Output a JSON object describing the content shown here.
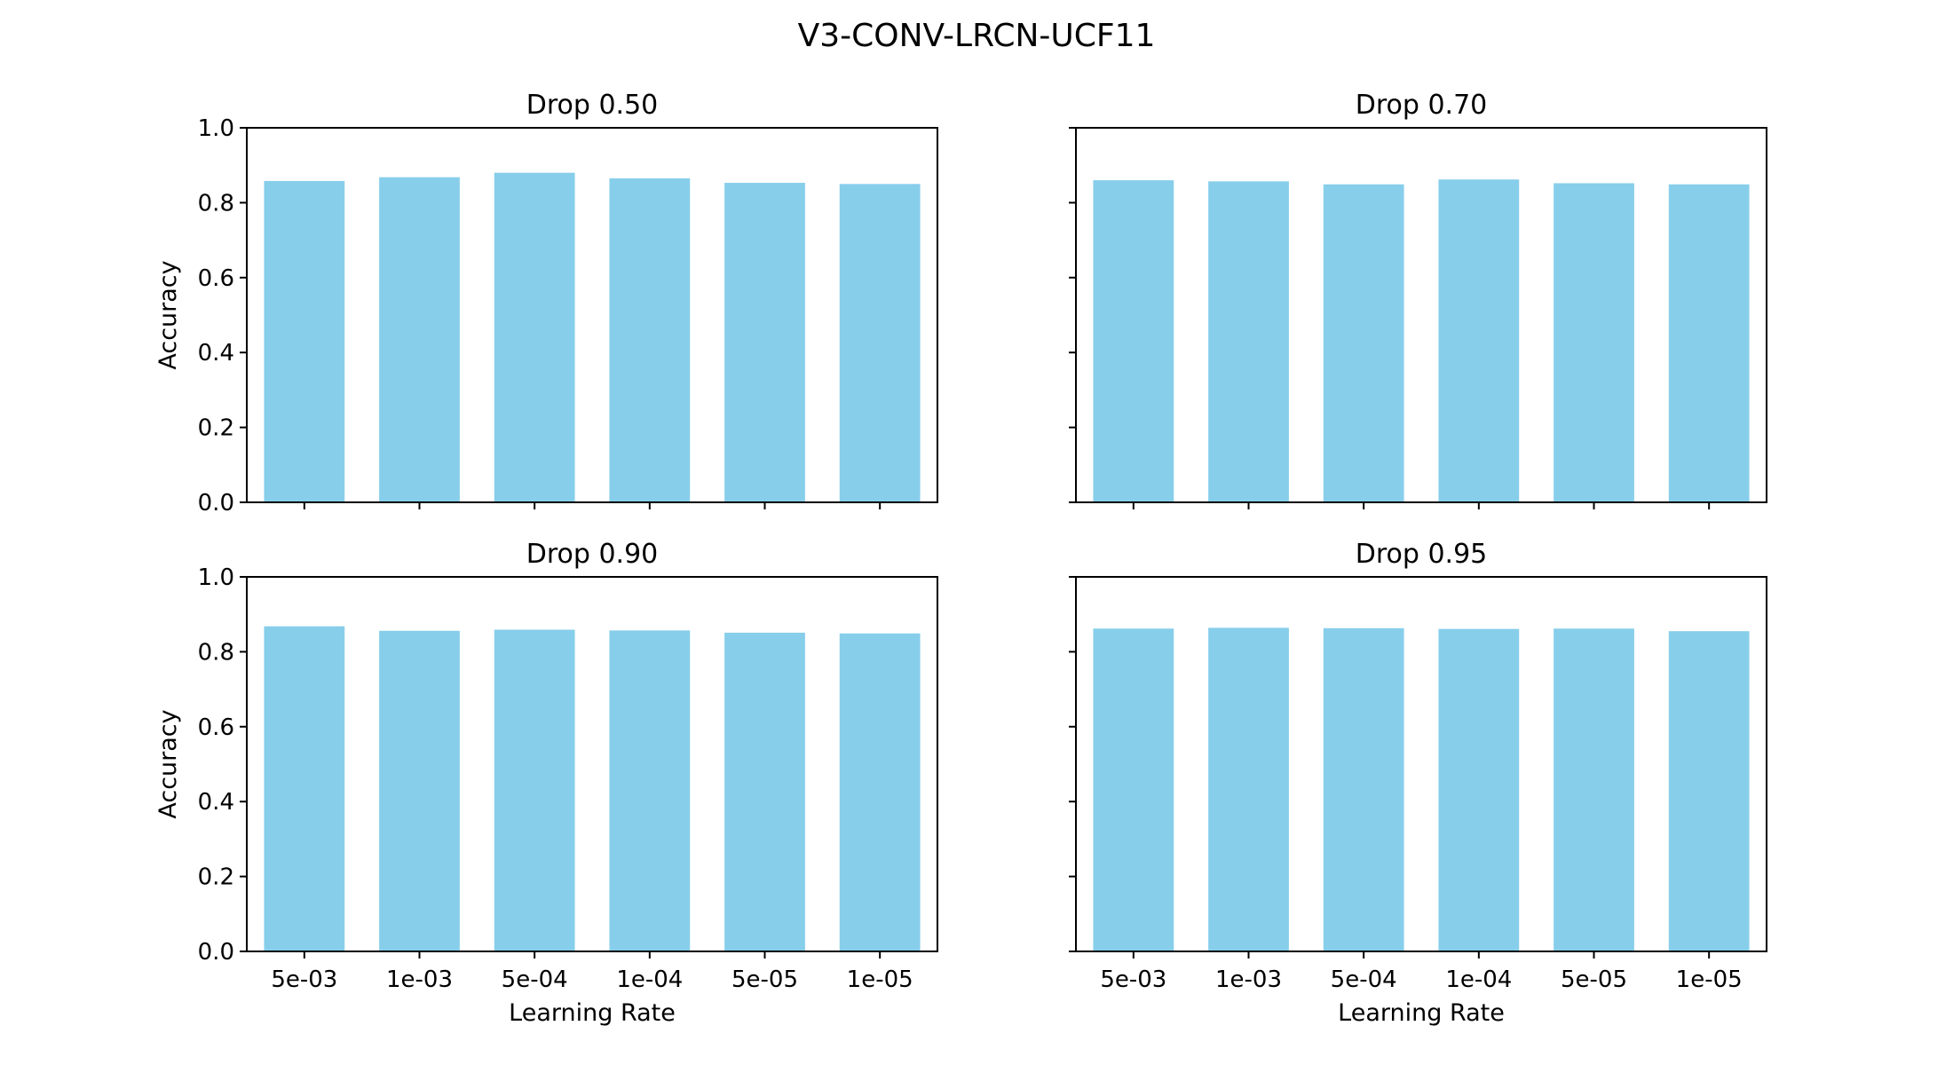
{
  "figure": {
    "title": "V3-CONV-LRCN-UCF11"
  },
  "colors": {
    "bar": "#87ceeb",
    "axis": "#000000",
    "background": "#ffffff"
  },
  "chart_data": [
    {
      "type": "bar",
      "title": "Drop 0.50",
      "xlabel": "",
      "ylabel": "Accuracy",
      "categories": [
        "5e-03",
        "1e-03",
        "5e-04",
        "1e-04",
        "5e-05",
        "1e-05"
      ],
      "values": [
        0.858,
        0.868,
        0.88,
        0.865,
        0.853,
        0.85
      ],
      "ylim": [
        0,
        1.0
      ],
      "yticks": [
        "0.0",
        "0.2",
        "0.4",
        "0.6",
        "0.8",
        "1.0"
      ],
      "show_xticklabels": false,
      "show_yticklabels": true,
      "grid": false
    },
    {
      "type": "bar",
      "title": "Drop 0.70",
      "xlabel": "",
      "ylabel": "",
      "categories": [
        "5e-03",
        "1e-03",
        "5e-04",
        "1e-04",
        "5e-05",
        "1e-05"
      ],
      "values": [
        0.86,
        0.857,
        0.849,
        0.862,
        0.852,
        0.849
      ],
      "ylim": [
        0,
        1.0
      ],
      "yticks": [
        "0.0",
        "0.2",
        "0.4",
        "0.6",
        "0.8",
        "1.0"
      ],
      "show_xticklabels": false,
      "show_yticklabels": false,
      "grid": false
    },
    {
      "type": "bar",
      "title": "Drop 0.90",
      "xlabel": "Learning Rate",
      "ylabel": "Accuracy",
      "categories": [
        "5e-03",
        "1e-03",
        "5e-04",
        "1e-04",
        "5e-05",
        "1e-05"
      ],
      "values": [
        0.868,
        0.856,
        0.859,
        0.857,
        0.851,
        0.849
      ],
      "ylim": [
        0,
        1.0
      ],
      "yticks": [
        "0.0",
        "0.2",
        "0.4",
        "0.6",
        "0.8",
        "1.0"
      ],
      "show_xticklabels": true,
      "show_yticklabels": true,
      "grid": false
    },
    {
      "type": "bar",
      "title": "Drop 0.95",
      "xlabel": "Learning Rate",
      "ylabel": "",
      "categories": [
        "5e-03",
        "1e-03",
        "5e-04",
        "1e-04",
        "5e-05",
        "1e-05"
      ],
      "values": [
        0.862,
        0.864,
        0.863,
        0.861,
        0.862,
        0.855
      ],
      "ylim": [
        0,
        1.0
      ],
      "yticks": [
        "0.0",
        "0.2",
        "0.4",
        "0.6",
        "0.8",
        "1.0"
      ],
      "show_xticklabels": true,
      "show_yticklabels": false,
      "grid": false
    }
  ]
}
